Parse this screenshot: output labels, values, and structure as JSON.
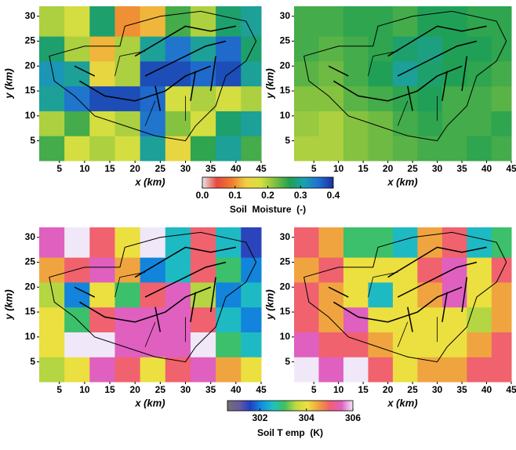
{
  "chart_data": [
    {
      "type": "heatmap",
      "xlabel": "x  (km)",
      "ylabel": "y  (km)",
      "xlim": [
        1,
        45
      ],
      "ylim": [
        1,
        32
      ],
      "xticks": [
        5,
        10,
        15,
        20,
        25,
        30,
        35,
        40,
        45
      ],
      "yticks": [
        5,
        10,
        15,
        20,
        25,
        30
      ],
      "xbins": [
        1,
        6,
        11,
        16,
        21,
        26,
        31,
        36,
        41,
        45
      ],
      "ybins": [
        1,
        6,
        11,
        16,
        21,
        26,
        32
      ],
      "values": [
        [
          0.25,
          0.18,
          0.2,
          0.18,
          0.3,
          0.15,
          0.26,
          0.3,
          0.25
        ],
        [
          0.2,
          0.25,
          0.18,
          0.2,
          0.35,
          0.22,
          0.18,
          0.28,
          0.3
        ],
        [
          0.3,
          0.35,
          0.38,
          0.38,
          0.36,
          0.18,
          0.2,
          0.18,
          0.2
        ],
        [
          0.32,
          0.3,
          0.15,
          0.2,
          0.38,
          0.38,
          0.36,
          0.38,
          0.3
        ],
        [
          0.28,
          0.2,
          0.12,
          0.2,
          0.3,
          0.35,
          0.3,
          0.36,
          0.28
        ],
        [
          0.2,
          0.18,
          0.28,
          0.1,
          0.12,
          0.25,
          0.2,
          0.28,
          0.3
        ]
      ],
      "colorbar": {
        "label": "Soil  Moisture  (-)",
        "lim": [
          0,
          0.4
        ],
        "ticks": [
          {
            "value": 0,
            "label": "0.0"
          },
          0.1,
          0.2,
          0.3,
          0.4
        ],
        "colors": [
          "#e6e6e6",
          "#e8483c",
          "#f07a30",
          "#f0d040",
          "#d8e040",
          "#80c040",
          "#20a050",
          "#1aa0b0",
          "#2070d0",
          "#1a30a0"
        ]
      }
    },
    {
      "type": "heatmap",
      "xlabel": "x  (km)",
      "ylabel": "y  (km)",
      "xlim": [
        1,
        45
      ],
      "ylim": [
        1,
        32
      ],
      "xticks": [
        5,
        10,
        15,
        20,
        25,
        30,
        35,
        40,
        45
      ],
      "yticks": [
        5,
        10,
        15,
        20,
        25,
        30
      ],
      "xbins": [
        1,
        6,
        11,
        16,
        21,
        26,
        31,
        36,
        41,
        45
      ],
      "ybins": [
        1,
        6,
        11,
        16,
        21,
        26,
        32
      ],
      "values": [
        [
          0.2,
          0.2,
          0.22,
          0.23,
          0.24,
          0.25,
          0.25,
          0.26,
          0.25
        ],
        [
          0.21,
          0.2,
          0.22,
          0.23,
          0.25,
          0.26,
          0.25,
          0.25,
          0.26
        ],
        [
          0.22,
          0.22,
          0.24,
          0.25,
          0.26,
          0.27,
          0.25,
          0.25,
          0.24
        ],
        [
          0.24,
          0.23,
          0.25,
          0.27,
          0.3,
          0.28,
          0.27,
          0.26,
          0.25
        ],
        [
          0.25,
          0.24,
          0.25,
          0.26,
          0.28,
          0.29,
          0.27,
          0.27,
          0.26
        ],
        [
          0.25,
          0.25,
          0.26,
          0.26,
          0.25,
          0.27,
          0.27,
          0.26,
          0.26
        ]
      ]
    },
    {
      "type": "heatmap",
      "xlabel": "x  (km)",
      "ylabel": "y  (km)",
      "xlim": [
        1,
        45
      ],
      "ylim": [
        1,
        32
      ],
      "xticks": [
        5,
        10,
        15,
        20,
        25,
        30,
        35,
        40,
        45
      ],
      "yticks": [
        5,
        10,
        15,
        20,
        25,
        30
      ],
      "xbins": [
        1,
        6,
        11,
        16,
        21,
        26,
        31,
        36,
        41,
        45
      ],
      "ybins": [
        1,
        6,
        11,
        16,
        21,
        26,
        32
      ],
      "values": [
        [
          303.5,
          304,
          305.5,
          305,
          304,
          305,
          305.5,
          304.5,
          304
        ],
        [
          304,
          306,
          306,
          305.5,
          305.5,
          305.5,
          306,
          303,
          302.5
        ],
        [
          304,
          303,
          305,
          305.5,
          305.5,
          305.5,
          305,
          302.5,
          302
        ],
        [
          303.5,
          302,
          304,
          303,
          305,
          305.5,
          303.5,
          302,
          302.5
        ],
        [
          304.5,
          305,
          305.5,
          304.5,
          302,
          302.5,
          305,
          303,
          302
        ],
        [
          305.5,
          306,
          305,
          304,
          306,
          302.5,
          305,
          302.5,
          301.5
        ]
      ],
      "colorbar": {
        "label": "Soil T emp  (K)",
        "lim": [
          300.6,
          306
        ],
        "ticks": [
          302,
          304,
          306
        ],
        "colors": [
          "#707070",
          "#6a5aa0",
          "#2040c0",
          "#1090e0",
          "#20c0c0",
          "#40c060",
          "#c0d840",
          "#f0e040",
          "#f0a040",
          "#f06070",
          "#e060c0",
          "#f0e8f8"
        ]
      }
    },
    {
      "type": "heatmap",
      "xlabel": "x  (km)",
      "ylabel": "y  (km)",
      "xlim": [
        1,
        45
      ],
      "ylim": [
        1,
        32
      ],
      "xticks": [
        5,
        10,
        15,
        20,
        25,
        30,
        35,
        40,
        45
      ],
      "yticks": [
        5,
        10,
        15,
        20,
        25,
        30
      ],
      "xbins": [
        1,
        6,
        11,
        16,
        21,
        26,
        31,
        36,
        41,
        45
      ],
      "ybins": [
        1,
        6,
        11,
        16,
        21,
        26,
        32
      ],
      "values": [
        [
          306,
          305.5,
          306,
          305,
          304,
          304.5,
          304.5,
          305,
          305
        ],
        [
          305.5,
          305,
          305,
          304.5,
          304,
          304,
          304,
          304.5,
          305
        ],
        [
          305,
          304.5,
          305.5,
          304,
          304,
          304,
          304,
          303.5,
          304.5
        ],
        [
          305,
          304.5,
          304,
          302.5,
          304,
          304.5,
          305.5,
          304,
          304.5
        ],
        [
          304.5,
          305,
          304,
          304,
          304,
          305,
          305.5,
          304,
          305
        ],
        [
          305,
          304.5,
          303,
          303,
          302.5,
          304.5,
          305,
          302.5,
          303
        ]
      ]
    }
  ]
}
